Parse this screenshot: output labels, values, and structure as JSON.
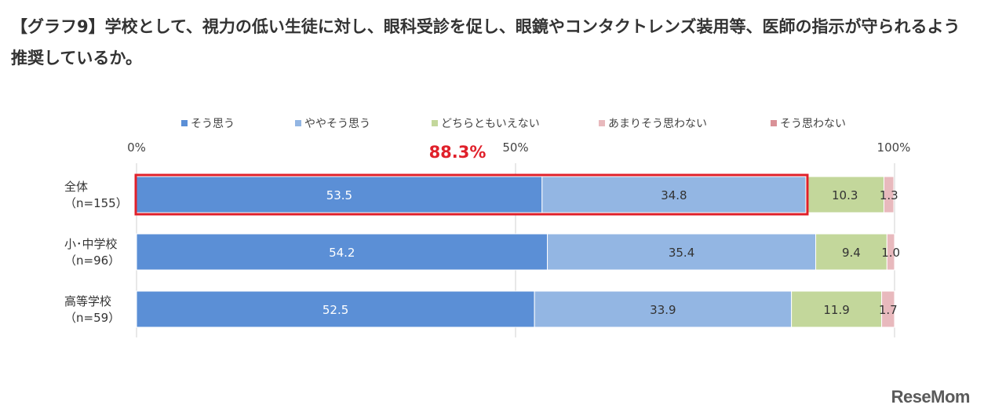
{
  "title": "【グラフ9】学校として、視力の低い生徒に対し、眼科受診を促し、眼鏡やコンタクトレンズ装用等、医師の指示が守られるよう推奨しているか。",
  "logo": "ReseMom",
  "chart_data": {
    "type": "bar",
    "orientation": "horizontal",
    "stacked": true,
    "percent": true,
    "xlim": [
      0,
      100
    ],
    "x_ticks": [
      "0%",
      "50%",
      "100%"
    ],
    "grid": true,
    "legend_position": "top",
    "categories": [
      [
        "全体",
        "（n=155）"
      ],
      [
        "小･中学校",
        "（n=96）"
      ],
      [
        "高等学校",
        "（n=59）"
      ]
    ],
    "series": [
      {
        "name": "そう思う",
        "color": "#5b8fd6",
        "values": [
          53.5,
          54.2,
          52.5
        ],
        "labels": [
          "53.5",
          "54.2",
          "52.5"
        ]
      },
      {
        "name": "ややそう思う",
        "color": "#93b6e3",
        "values": [
          34.8,
          35.4,
          33.9
        ],
        "labels": [
          "34.8",
          "35.4",
          "33.9"
        ]
      },
      {
        "name": "どちらともいえない",
        "color": "#c3d79b",
        "values": [
          10.3,
          9.4,
          11.9
        ],
        "labels": [
          "10.3",
          "9.4",
          "11.9"
        ]
      },
      {
        "name": "あまりそう思わない",
        "color": "#e8b9bd",
        "values": [
          1.3,
          1.0,
          1.7
        ],
        "labels": [
          "1.3",
          "1.0",
          "1.7"
        ]
      },
      {
        "name": "そう思わない",
        "color": "#d99197",
        "values": [
          0,
          0,
          0
        ],
        "labels": [
          "",
          "",
          ""
        ]
      }
    ],
    "highlight": {
      "category_index": 0,
      "series_count": 2,
      "label": "88.3%",
      "color": "#e0202a"
    }
  }
}
